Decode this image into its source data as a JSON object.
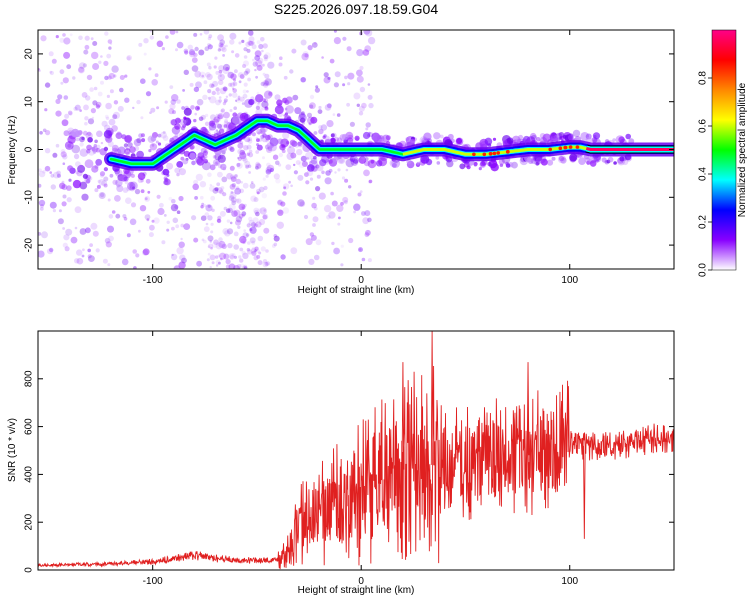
{
  "title": "S225.2026.097.18.59.G04",
  "chart_data": [
    {
      "type": "heatmap",
      "name": "spectrogram",
      "xlabel": "Height of straight line (km)",
      "ylabel": "Frequency (Hz)",
      "xlim": [
        -155,
        150
      ],
      "ylim": [
        -25,
        25
      ],
      "xticks": [
        -100,
        0,
        100
      ],
      "xtick_labels": [
        "-100",
        "0",
        "100"
      ],
      "yticks": [
        -20,
        -10,
        0,
        10,
        20
      ],
      "ytick_labels": [
        "-20",
        "-10",
        "0",
        "10",
        "20"
      ],
      "ridge": {
        "x": [
          -120,
          -110,
          -100,
          -90,
          -80,
          -70,
          -60,
          -50,
          -45,
          -40,
          -35,
          -30,
          -25,
          -20,
          -10,
          0,
          10,
          20,
          30,
          40,
          50,
          60,
          70,
          80,
          90,
          100,
          105,
          110,
          150
        ],
        "y": [
          -2,
          -3,
          -3,
          0,
          3,
          1,
          3,
          6,
          6,
          5,
          5,
          4,
          2,
          0,
          0,
          0,
          0,
          -1,
          0,
          0,
          -1,
          -1,
          -0.5,
          0,
          0,
          0.5,
          0.5,
          0,
          0
        ]
      },
      "colorbar": {
        "label": "Normalized spectral amplitude",
        "range": [
          0,
          1
        ],
        "ticks": [
          0.0,
          0.2,
          0.4,
          0.6,
          0.8
        ],
        "tick_labels": [
          "0.0",
          "0.2",
          "0.4",
          "0.6",
          "0.8"
        ],
        "colormap": [
          "#ffffff",
          "#8800ff",
          "#0000ff",
          "#00ffff",
          "#00ff00",
          "#ffff00",
          "#ff8800",
          "#ff0000",
          "#ff0088"
        ]
      }
    },
    {
      "type": "line",
      "name": "snr",
      "xlabel": "Height of straight line (km)",
      "ylabel": "SNR (10 * v/v)",
      "xlim": [
        -155,
        150
      ],
      "ylim": [
        0,
        1000
      ],
      "xticks": [
        -100,
        0,
        100
      ],
      "xtick_labels": [
        "-100",
        "0",
        "100"
      ],
      "yticks": [
        0,
        200,
        400,
        600,
        800
      ],
      "ytick_labels": [
        "0",
        "200",
        "400",
        "600",
        "800"
      ],
      "color": "#e02020",
      "trend": {
        "x": [
          -155,
          -120,
          -100,
          -80,
          -60,
          -40,
          -35,
          -30,
          -20,
          -10,
          0,
          10,
          20,
          30,
          40,
          50,
          60,
          80,
          100,
          120,
          140,
          150
        ],
        "y": [
          20,
          25,
          35,
          60,
          40,
          40,
          80,
          180,
          240,
          280,
          320,
          380,
          420,
          440,
          440,
          450,
          460,
          480,
          520,
          520,
          550,
          560
        ]
      },
      "annotations": [
        {
          "x": 34,
          "y": 1000
        },
        {
          "x": 20,
          "y": 870
        },
        {
          "x": 80,
          "y": 870
        },
        {
          "x": 107,
          "y": 130
        }
      ]
    }
  ]
}
